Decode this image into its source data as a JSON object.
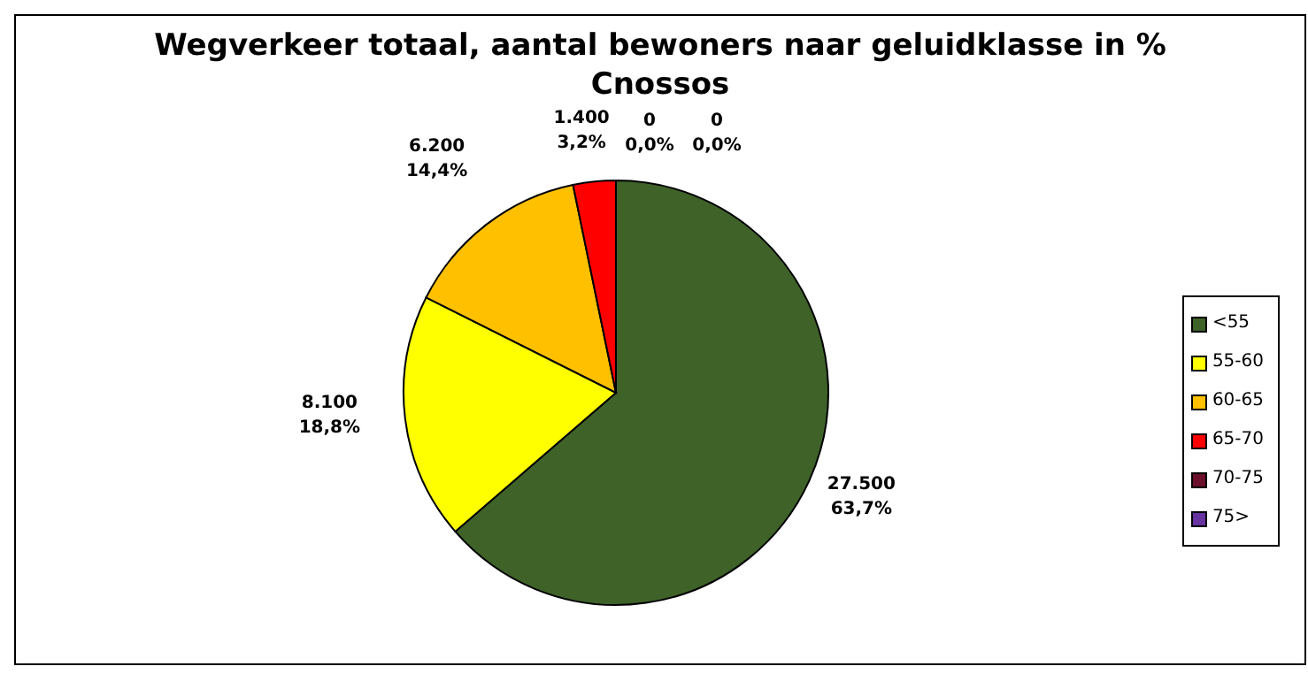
{
  "chart_data": {
    "type": "pie",
    "title": "Wegverkeer totaal, aantal bewoners naar geluidklasse in %",
    "subtitle": "Cnossos",
    "categories": [
      "<55",
      "55-60",
      "60-65",
      "65-70",
      "70-75",
      "75>"
    ],
    "values": [
      27500,
      8100,
      6200,
      1400,
      0,
      0
    ],
    "colors": [
      "#3f6229",
      "#ffff00",
      "#ffc000",
      "#ff0000",
      "#6b0f2b",
      "#6633a0"
    ],
    "value_labels": [
      "27.500\n63,7%",
      "8.100\n18,8%",
      "6.200\n14,4%",
      "1.400\n3,2%",
      "0\n0,0%",
      "0\n0,0%"
    ],
    "legend": "right"
  }
}
